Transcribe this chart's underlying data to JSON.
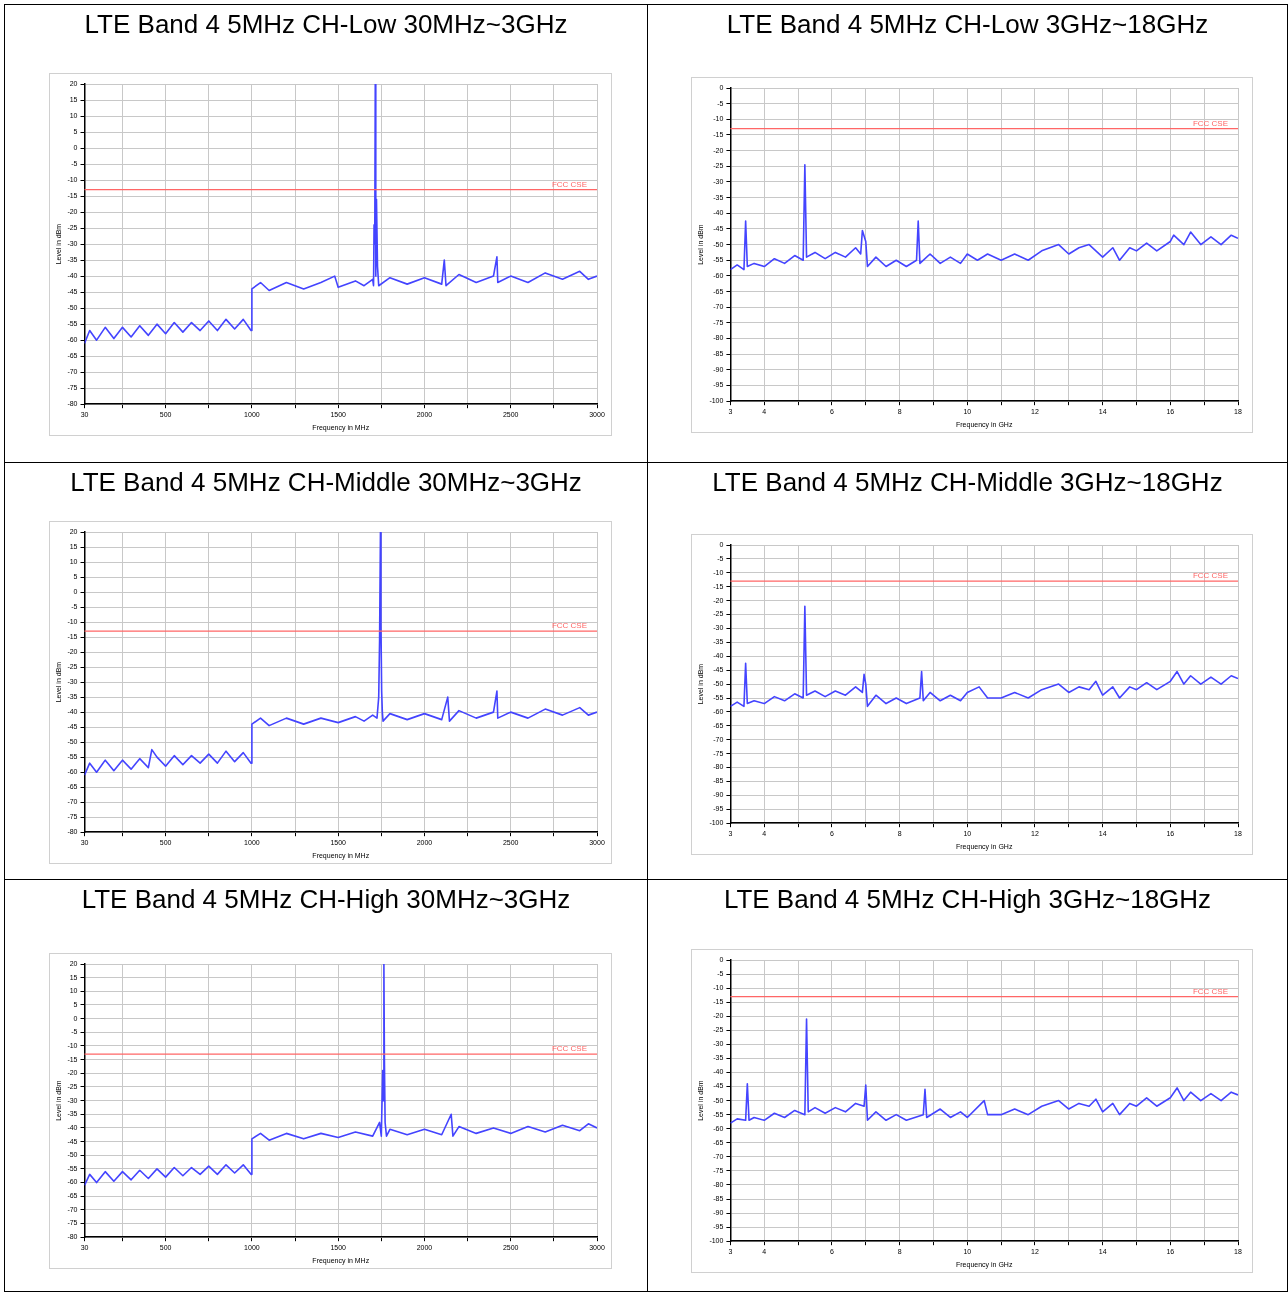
{
  "chart_data": [
    {
      "type": "line",
      "title": "LTE Band 4 5MHz CH-Low 30MHz~3GHz",
      "xlabel": "Frequency in MHz",
      "ylabel": "Level in dBm",
      "grid": true,
      "legend": false,
      "marker": "none",
      "xlim": [
        30,
        3000
      ],
      "ylim": [
        -80,
        20
      ],
      "xticks": [
        30,
        {
          "value": 250,
          "label": null
        },
        500,
        {
          "value": 750,
          "label": null
        },
        1000,
        {
          "value": 1250,
          "label": null
        },
        1500,
        {
          "value": 1750,
          "label": null
        },
        2000,
        {
          "value": 2250,
          "label": null
        },
        2500,
        {
          "value": 2750,
          "label": null
        },
        3000
      ],
      "yticks": [
        -80,
        -75,
        -70,
        -65,
        -60,
        -55,
        -50,
        -45,
        -40,
        -35,
        -30,
        -25,
        -20,
        -15,
        -10,
        -5,
        0,
        5,
        10,
        15,
        20
      ],
      "ref_lines": [
        {
          "axis": "y",
          "value": -13,
          "label": "FCC CSE",
          "color": "#ff6666"
        }
      ],
      "series": [
        {
          "color": "#4444ff",
          "x": [
            30,
            60,
            100,
            150,
            200,
            250,
            300,
            350,
            400,
            450,
            500,
            550,
            600,
            650,
            700,
            750,
            800,
            850,
            900,
            950,
            995,
            1000,
            1050,
            1100,
            1200,
            1300,
            1400,
            1480,
            1500,
            1600,
            1650,
            1700,
            1705,
            1708,
            1712,
            1715,
            1718,
            1722,
            1728,
            1735,
            1800,
            1900,
            2000,
            2100,
            2115,
            2125,
            2200,
            2300,
            2400,
            2420,
            2425,
            2500,
            2600,
            2700,
            2800,
            2900,
            2950,
            3000
          ],
          "values": [
            -61,
            -57,
            -60,
            -56,
            -59.5,
            -56,
            -59,
            -55.5,
            -58.5,
            -55,
            -58,
            -54.5,
            -57.5,
            -54.5,
            -57,
            -54,
            -57,
            -53.5,
            -56.5,
            -53.5,
            -57,
            -44,
            -42,
            -44.5,
            -42,
            -44,
            -42,
            -40,
            -43.5,
            -41.5,
            -43,
            -41,
            -43,
            -24,
            -30,
            20,
            -40,
            -16,
            -37,
            -43,
            -40.5,
            -42.5,
            -40.5,
            -42.5,
            -35,
            -43,
            -39.5,
            -42,
            -40,
            -34,
            -42,
            -40,
            -42,
            -39,
            -41,
            -38.5,
            -41,
            -40
          ]
        }
      ]
    },
    {
      "type": "line",
      "title": "LTE Band 4 5MHz CH-Low 3GHz~18GHz",
      "xlabel": "Frequency in GHz",
      "ylabel": "Level in dBm",
      "grid": true,
      "legend": false,
      "marker": "none",
      "xlim": [
        3,
        18
      ],
      "ylim": [
        -100,
        0
      ],
      "xticks": [
        3,
        4,
        {
          "value": 5,
          "label": null
        },
        6,
        {
          "value": 7,
          "label": null
        },
        8,
        {
          "value": 9,
          "label": null
        },
        10,
        {
          "value": 11,
          "label": null
        },
        12,
        {
          "value": 13,
          "label": null
        },
        14,
        {
          "value": 15,
          "label": null
        },
        16,
        {
          "value": 17,
          "label": null
        },
        18
      ],
      "yticks": [
        -100,
        -95,
        -90,
        -85,
        -80,
        -75,
        -70,
        -65,
        -60,
        -55,
        -50,
        -45,
        -40,
        -35,
        -30,
        -25,
        -20,
        -15,
        -10,
        -5,
        0
      ],
      "ref_lines": [
        {
          "axis": "y",
          "value": -13,
          "label": "FCC CSE",
          "color": "#ff6666"
        }
      ],
      "series": [
        {
          "color": "#4444ff",
          "x": [
            3,
            3.2,
            3.4,
            3.45,
            3.5,
            3.7,
            4,
            4.3,
            4.6,
            4.9,
            5.15,
            5.2,
            5.25,
            5.5,
            5.8,
            6.1,
            6.4,
            6.7,
            6.85,
            6.9,
            7,
            7.05,
            7.3,
            7.6,
            7.9,
            8.2,
            8.5,
            8.55,
            8.6,
            8.9,
            9.2,
            9.5,
            9.8,
            10,
            10.3,
            10.6,
            11,
            11.4,
            11.8,
            12.2,
            12.7,
            13,
            13.3,
            13.6,
            14,
            14.3,
            14.5,
            14.8,
            15,
            15.3,
            15.6,
            16,
            16.1,
            16.4,
            16.6,
            16.9,
            17.2,
            17.5,
            17.8,
            18
          ],
          "values": [
            -58,
            -56.5,
            -58,
            -42.5,
            -57,
            -56,
            -57,
            -54.5,
            -56,
            -53.5,
            -55,
            -24.5,
            -54,
            -52.5,
            -54.5,
            -52.5,
            -54,
            -51,
            -53,
            -45.5,
            -49,
            -57,
            -54,
            -57,
            -55,
            -57,
            -55,
            -42.5,
            -56,
            -53,
            -56,
            -54,
            -56,
            -53,
            -55,
            -53,
            -55,
            -53,
            -55,
            -52,
            -50,
            -53,
            -51,
            -50,
            -54,
            -51,
            -55,
            -51,
            -52,
            -49.5,
            -52,
            -49,
            -47,
            -50,
            -46,
            -50,
            -47.5,
            -50,
            -47,
            -48
          ]
        }
      ]
    },
    {
      "type": "line",
      "title": "LTE Band 4 5MHz CH-Middle 30MHz~3GHz",
      "xlabel": "Frequency in MHz",
      "ylabel": "Level in dBm",
      "grid": true,
      "legend": false,
      "marker": "none",
      "xlim": [
        30,
        3000
      ],
      "ylim": [
        -80,
        20
      ],
      "xticks": [
        30,
        {
          "value": 250,
          "label": null
        },
        500,
        {
          "value": 750,
          "label": null
        },
        1000,
        {
          "value": 1250,
          "label": null
        },
        1500,
        {
          "value": 1750,
          "label": null
        },
        2000,
        {
          "value": 2250,
          "label": null
        },
        2500,
        {
          "value": 2750,
          "label": null
        },
        3000
      ],
      "yticks": [
        -80,
        -75,
        -70,
        -65,
        -60,
        -55,
        -50,
        -45,
        -40,
        -35,
        -30,
        -25,
        -20,
        -15,
        -10,
        -5,
        0,
        5,
        10,
        15,
        20
      ],
      "ref_lines": [
        {
          "axis": "y",
          "value": -13,
          "label": "FCC CSE",
          "color": "#ff6666"
        }
      ],
      "series": [
        {
          "color": "#4444ff",
          "x": [
            30,
            60,
            100,
            150,
            200,
            250,
            300,
            350,
            400,
            420,
            450,
            500,
            550,
            600,
            650,
            700,
            750,
            800,
            850,
            900,
            950,
            995,
            1000,
            1050,
            1100,
            1200,
            1300,
            1400,
            1500,
            1600,
            1650,
            1700,
            1725,
            1735,
            1740,
            1745,
            1748,
            1752,
            1756,
            1760,
            1800,
            1900,
            2000,
            2100,
            2135,
            2145,
            2200,
            2300,
            2400,
            2420,
            2425,
            2500,
            2600,
            2700,
            2800,
            2900,
            2950,
            3000
          ],
          "values": [
            -61,
            -57,
            -60,
            -56,
            -59.5,
            -56,
            -59,
            -55.5,
            -58.5,
            -52.5,
            -55,
            -58,
            -54.5,
            -57.5,
            -54.5,
            -57,
            -54,
            -57,
            -53,
            -56.5,
            -53.5,
            -57,
            -44,
            -42,
            -44.5,
            -42,
            -44,
            -42,
            -43.5,
            -41.5,
            -43,
            -41,
            -42,
            -35,
            -16,
            20,
            -11,
            -33,
            -40,
            -43,
            -40.5,
            -42.5,
            -40.5,
            -42.5,
            -35,
            -43,
            -39.5,
            -42,
            -40,
            -33,
            -42,
            -40,
            -42,
            -39,
            -41,
            -38.5,
            -41,
            -40
          ]
        }
      ]
    },
    {
      "type": "line",
      "title": "LTE Band 4 5MHz CH-Middle 3GHz~18GHz",
      "xlabel": "Frequency in GHz",
      "ylabel": "Level in dBm",
      "grid": true,
      "legend": false,
      "marker": "none",
      "xlim": [
        3,
        18
      ],
      "ylim": [
        -100,
        0
      ],
      "xticks": [
        3,
        4,
        {
          "value": 5,
          "label": null
        },
        6,
        {
          "value": 7,
          "label": null
        },
        8,
        {
          "value": 9,
          "label": null
        },
        10,
        {
          "value": 11,
          "label": null
        },
        12,
        {
          "value": 13,
          "label": null
        },
        14,
        {
          "value": 15,
          "label": null
        },
        16,
        {
          "value": 17,
          "label": null
        },
        18
      ],
      "yticks": [
        -100,
        -95,
        -90,
        -85,
        -80,
        -75,
        -70,
        -65,
        -60,
        -55,
        -50,
        -45,
        -40,
        -35,
        -30,
        -25,
        -20,
        -15,
        -10,
        -5,
        0
      ],
      "ref_lines": [
        {
          "axis": "y",
          "value": -13,
          "label": "FCC CSE",
          "color": "#ff6666"
        }
      ],
      "series": [
        {
          "color": "#4444ff",
          "x": [
            3,
            3.2,
            3.4,
            3.45,
            3.5,
            3.7,
            4,
            4.3,
            4.6,
            4.9,
            5.15,
            5.2,
            5.25,
            5.5,
            5.8,
            6.1,
            6.4,
            6.7,
            6.9,
            6.95,
            7,
            7.05,
            7.3,
            7.6,
            7.9,
            8.2,
            8.6,
            8.65,
            8.7,
            8.9,
            9.2,
            9.5,
            9.8,
            10,
            10.35,
            10.6,
            11,
            11.4,
            11.8,
            12.2,
            12.7,
            13,
            13.3,
            13.6,
            13.8,
            14,
            14.3,
            14.5,
            14.8,
            15,
            15.3,
            15.6,
            16,
            16.2,
            16.4,
            16.6,
            16.9,
            17.2,
            17.5,
            17.8,
            18
          ],
          "values": [
            -58,
            -56.5,
            -58,
            -42.5,
            -57,
            -56,
            -57,
            -54.5,
            -56,
            -53.5,
            -55,
            -22,
            -54,
            -52.5,
            -54.5,
            -52.5,
            -54,
            -51,
            -53,
            -46.5,
            -50,
            -58,
            -54,
            -57,
            -55,
            -57,
            -55,
            -45.5,
            -56,
            -53,
            -56,
            -54,
            -56,
            -53,
            -51,
            -55,
            -55,
            -53,
            -55,
            -52,
            -50,
            -53,
            -51,
            -52,
            -49,
            -54,
            -51,
            -55,
            -51,
            -52,
            -49.5,
            -52,
            -49,
            -45.5,
            -50,
            -47,
            -50,
            -47.5,
            -50,
            -47,
            -48
          ]
        }
      ]
    },
    {
      "type": "line",
      "title": "LTE Band 4 5MHz CH-High 30MHz~3GHz",
      "xlabel": "Frequency in MHz",
      "ylabel": "Level in dBm",
      "grid": true,
      "legend": false,
      "marker": "none",
      "xlim": [
        30,
        3000
      ],
      "ylim": [
        -80,
        20
      ],
      "xticks": [
        30,
        {
          "value": 250,
          "label": null
        },
        500,
        {
          "value": 750,
          "label": null
        },
        1000,
        {
          "value": 1250,
          "label": null
        },
        1500,
        {
          "value": 1750,
          "label": null
        },
        2000,
        {
          "value": 2250,
          "label": null
        },
        2500,
        {
          "value": 2750,
          "label": null
        },
        3000
      ],
      "yticks": [
        -80,
        -75,
        -70,
        -65,
        -60,
        -55,
        -50,
        -45,
        -40,
        -35,
        -30,
        -25,
        -20,
        -15,
        -10,
        -5,
        0,
        5,
        10,
        15,
        20
      ],
      "ref_lines": [
        {
          "axis": "y",
          "value": -13,
          "label": "FCC CSE",
          "color": "#ff6666"
        }
      ],
      "series": [
        {
          "color": "#4444ff",
          "x": [
            30,
            60,
            100,
            150,
            200,
            250,
            300,
            350,
            400,
            450,
            500,
            550,
            600,
            650,
            700,
            750,
            800,
            850,
            900,
            950,
            995,
            1000,
            1050,
            1100,
            1200,
            1300,
            1400,
            1500,
            1600,
            1700,
            1740,
            1750,
            1758,
            1762,
            1765,
            1768,
            1772,
            1780,
            1800,
            1900,
            2000,
            2100,
            2155,
            2165,
            2200,
            2300,
            2400,
            2500,
            2600,
            2700,
            2800,
            2900,
            2950,
            3000
          ],
          "values": [
            -61,
            -57,
            -60,
            -56,
            -59.5,
            -56,
            -59,
            -55.5,
            -58.5,
            -55,
            -58,
            -54.5,
            -57.5,
            -54.5,
            -57,
            -54,
            -57,
            -53.5,
            -56.5,
            -53.5,
            -57,
            -44,
            -42,
            -44.5,
            -42,
            -44,
            -42,
            -43.5,
            -41.5,
            -43,
            -38,
            -43,
            -19,
            -30,
            20,
            -15,
            -38,
            -43,
            -40.5,
            -42.5,
            -40.5,
            -42.5,
            -35,
            -43,
            -39.5,
            -42,
            -40,
            -42,
            -39.5,
            -41.5,
            -39,
            -41,
            -38.5,
            -40
          ]
        }
      ]
    },
    {
      "type": "line",
      "title": "LTE Band 4 5MHz CH-High 3GHz~18GHz",
      "xlabel": "Frequency in GHz",
      "ylabel": "Level in dBm",
      "grid": true,
      "legend": false,
      "marker": "none",
      "xlim": [
        3,
        18
      ],
      "ylim": [
        -100,
        0
      ],
      "xticks": [
        3,
        4,
        {
          "value": 5,
          "label": null
        },
        6,
        {
          "value": 7,
          "label": null
        },
        8,
        {
          "value": 9,
          "label": null
        },
        10,
        {
          "value": 11,
          "label": null
        },
        12,
        {
          "value": 13,
          "label": null
        },
        14,
        {
          "value": 15,
          "label": null
        },
        16,
        {
          "value": 17,
          "label": null
        },
        18
      ],
      "yticks": [
        -100,
        -95,
        -90,
        -85,
        -80,
        -75,
        -70,
        -65,
        -60,
        -55,
        -50,
        -45,
        -40,
        -35,
        -30,
        -25,
        -20,
        -15,
        -10,
        -5,
        0
      ],
      "ref_lines": [
        {
          "axis": "y",
          "value": -13,
          "label": "FCC CSE",
          "color": "#ff6666"
        }
      ],
      "series": [
        {
          "color": "#4444ff",
          "x": [
            3,
            3.2,
            3.45,
            3.5,
            3.55,
            3.7,
            4,
            4.3,
            4.6,
            4.9,
            5.2,
            5.25,
            5.3,
            5.5,
            5.8,
            6.1,
            6.4,
            6.7,
            6.95,
            7,
            7.05,
            7.3,
            7.6,
            7.9,
            8.2,
            8.7,
            8.75,
            8.8,
            9.2,
            9.5,
            9.8,
            10,
            10.5,
            10.6,
            11,
            11.4,
            11.8,
            12.2,
            12.7,
            13,
            13.3,
            13.6,
            13.8,
            14,
            14.3,
            14.5,
            14.8,
            15,
            15.3,
            15.6,
            16,
            16.2,
            16.4,
            16.6,
            16.9,
            17.2,
            17.5,
            17.8,
            18
          ],
          "values": [
            -58,
            -56.5,
            -57,
            -44,
            -57,
            -56,
            -57,
            -54.5,
            -56,
            -53.5,
            -55,
            -21,
            -54,
            -52.5,
            -54.5,
            -52.5,
            -54,
            -51,
            -52,
            -44.5,
            -57,
            -54,
            -57,
            -55,
            -57,
            -55,
            -46,
            -56,
            -53,
            -56,
            -54,
            -56,
            -50,
            -55,
            -55,
            -53,
            -55,
            -52,
            -50,
            -53,
            -51,
            -52,
            -49.5,
            -54,
            -51,
            -55,
            -51,
            -52,
            -49,
            -52,
            -49,
            -45.5,
            -50,
            -47,
            -50,
            -47.5,
            -50,
            -47,
            -48
          ]
        }
      ]
    }
  ]
}
